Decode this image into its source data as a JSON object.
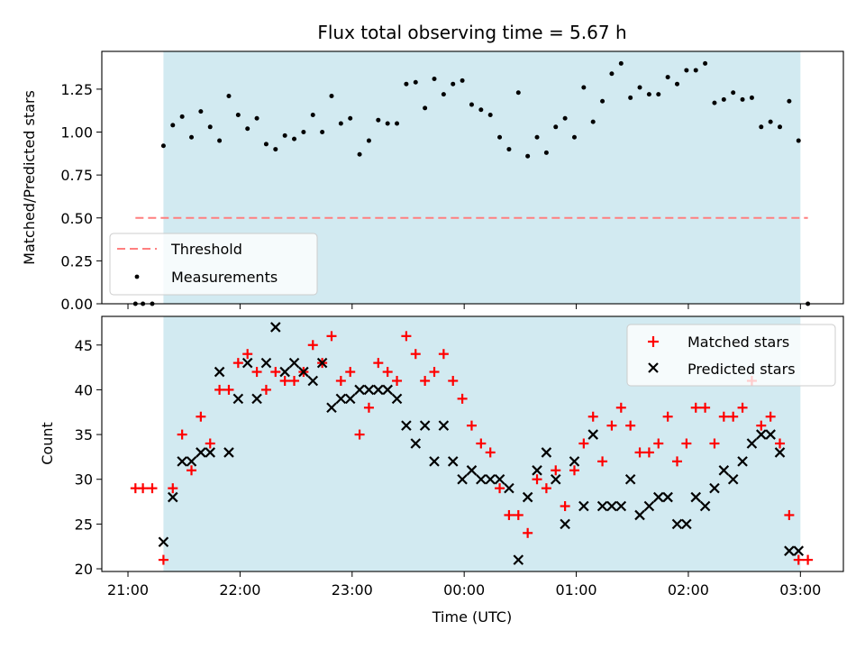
{
  "chart_data": [
    {
      "type": "scatter",
      "title": "Flux total observing time = 5.67 h",
      "xlabel": "",
      "ylabel": "Matched/Predicted stars",
      "xlim": [
        "20:46",
        "03:23"
      ],
      "ylim": [
        0,
        1.47
      ],
      "ytick_labels": [
        "0.00",
        "0.25",
        "0.50",
        "0.75",
        "1.00",
        "1.25"
      ],
      "yticks": [
        0,
        0.25,
        0.5,
        0.75,
        1.0,
        1.25
      ],
      "shaded_span": [
        "21:19",
        "03:00"
      ],
      "shade_color": "#add8e6",
      "threshold": {
        "name": "Threshold",
        "y": 0.5,
        "x_range": [
          "21:04",
          "03:04"
        ],
        "color": "#ff7f7f"
      },
      "legend": {
        "placement": "bottom-left",
        "entries": [
          "Threshold",
          "Measurements"
        ]
      },
      "series": [
        {
          "name": "Measurements",
          "marker": "dot",
          "color": "#000000",
          "points": [
            [
              "21:04",
              0.0
            ],
            [
              "21:08",
              0.0
            ],
            [
              "21:13",
              0.0
            ],
            [
              "21:19",
              0.92
            ],
            [
              "21:24",
              1.04
            ],
            [
              "21:29",
              1.09
            ],
            [
              "21:34",
              0.97
            ],
            [
              "21:39",
              1.12
            ],
            [
              "21:44",
              1.03
            ],
            [
              "21:49",
              0.95
            ],
            [
              "21:54",
              1.21
            ],
            [
              "21:59",
              1.1
            ],
            [
              "22:04",
              1.02
            ],
            [
              "22:09",
              1.08
            ],
            [
              "22:14",
              0.93
            ],
            [
              "22:19",
              0.9
            ],
            [
              "22:24",
              0.98
            ],
            [
              "22:29",
              0.96
            ],
            [
              "22:34",
              1.0
            ],
            [
              "22:39",
              1.1
            ],
            [
              "22:44",
              1.0
            ],
            [
              "22:49",
              1.21
            ],
            [
              "22:54",
              1.05
            ],
            [
              "22:59",
              1.08
            ],
            [
              "23:04",
              0.87
            ],
            [
              "23:09",
              0.95
            ],
            [
              "23:14",
              1.07
            ],
            [
              "23:19",
              1.05
            ],
            [
              "23:24",
              1.05
            ],
            [
              "23:29",
              1.28
            ],
            [
              "23:34",
              1.29
            ],
            [
              "23:39",
              1.14
            ],
            [
              "23:44",
              1.31
            ],
            [
              "23:49",
              1.22
            ],
            [
              "23:54",
              1.28
            ],
            [
              "23:59",
              1.3
            ],
            [
              "00:04",
              1.16
            ],
            [
              "00:09",
              1.13
            ],
            [
              "00:14",
              1.1
            ],
            [
              "00:19",
              0.97
            ],
            [
              "00:24",
              0.9
            ],
            [
              "00:29",
              1.23
            ],
            [
              "00:34",
              0.86
            ],
            [
              "00:39",
              0.97
            ],
            [
              "00:44",
              0.88
            ],
            [
              "00:49",
              1.03
            ],
            [
              "00:54",
              1.08
            ],
            [
              "00:59",
              0.97
            ],
            [
              "01:04",
              1.26
            ],
            [
              "01:09",
              1.06
            ],
            [
              "01:14",
              1.18
            ],
            [
              "01:19",
              1.34
            ],
            [
              "01:24",
              1.4
            ],
            [
              "01:29",
              1.2
            ],
            [
              "01:34",
              1.26
            ],
            [
              "01:39",
              1.22
            ],
            [
              "01:44",
              1.22
            ],
            [
              "01:49",
              1.32
            ],
            [
              "01:54",
              1.28
            ],
            [
              "01:59",
              1.36
            ],
            [
              "02:04",
              1.36
            ],
            [
              "02:09",
              1.4
            ],
            [
              "02:14",
              1.17
            ],
            [
              "02:19",
              1.19
            ],
            [
              "02:24",
              1.23
            ],
            [
              "02:29",
              1.19
            ],
            [
              "02:34",
              1.2
            ],
            [
              "02:39",
              1.03
            ],
            [
              "02:44",
              1.06
            ],
            [
              "02:49",
              1.03
            ],
            [
              "02:54",
              1.18
            ],
            [
              "02:59",
              0.95
            ],
            [
              "03:04",
              0.0
            ]
          ]
        }
      ]
    },
    {
      "type": "scatter",
      "title": "",
      "xlabel": "Time (UTC)",
      "ylabel": "Count",
      "xlim": [
        "20:46",
        "03:23"
      ],
      "ylim": [
        19.7,
        48.2
      ],
      "yticks": [
        20,
        25,
        30,
        35,
        40,
        45
      ],
      "ytick_labels": [
        "20",
        "25",
        "30",
        "35",
        "40",
        "45"
      ],
      "xticks": [
        "21:00",
        "22:00",
        "23:00",
        "00:00",
        "01:00",
        "02:00",
        "03:00"
      ],
      "shaded_span": [
        "21:19",
        "03:00"
      ],
      "shade_color": "#add8e6",
      "legend": {
        "placement": "top-right",
        "entries": [
          "Matched stars",
          "Predicted stars"
        ]
      },
      "series": [
        {
          "name": "Matched stars",
          "marker": "plus",
          "color": "#ff0000",
          "points": [
            [
              "21:04",
              29
            ],
            [
              "21:08",
              29
            ],
            [
              "21:13",
              29
            ],
            [
              "21:19",
              21
            ],
            [
              "21:24",
              29
            ],
            [
              "21:29",
              35
            ],
            [
              "21:34",
              31
            ],
            [
              "21:39",
              37
            ],
            [
              "21:44",
              34
            ],
            [
              "21:49",
              40
            ],
            [
              "21:54",
              40
            ],
            [
              "21:59",
              43
            ],
            [
              "22:04",
              44
            ],
            [
              "22:09",
              42
            ],
            [
              "22:14",
              40
            ],
            [
              "22:19",
              42
            ],
            [
              "22:24",
              41
            ],
            [
              "22:29",
              41
            ],
            [
              "22:34",
              42
            ],
            [
              "22:39",
              45
            ],
            [
              "22:44",
              43
            ],
            [
              "22:49",
              46
            ],
            [
              "22:54",
              41
            ],
            [
              "22:59",
              42
            ],
            [
              "23:04",
              35
            ],
            [
              "23:09",
              38
            ],
            [
              "23:14",
              43
            ],
            [
              "23:19",
              42
            ],
            [
              "23:24",
              41
            ],
            [
              "23:29",
              46
            ],
            [
              "23:34",
              44
            ],
            [
              "23:39",
              41
            ],
            [
              "23:44",
              42
            ],
            [
              "23:49",
              44
            ],
            [
              "23:54",
              41
            ],
            [
              "23:59",
              39
            ],
            [
              "00:04",
              36
            ],
            [
              "00:09",
              34
            ],
            [
              "00:14",
              33
            ],
            [
              "00:19",
              29
            ],
            [
              "00:24",
              26
            ],
            [
              "00:29",
              26
            ],
            [
              "00:34",
              24
            ],
            [
              "00:39",
              30
            ],
            [
              "00:44",
              29
            ],
            [
              "00:49",
              31
            ],
            [
              "00:54",
              27
            ],
            [
              "00:59",
              31
            ],
            [
              "01:04",
              34
            ],
            [
              "01:09",
              37
            ],
            [
              "01:14",
              32
            ],
            [
              "01:19",
              36
            ],
            [
              "01:24",
              38
            ],
            [
              "01:29",
              36
            ],
            [
              "01:34",
              33
            ],
            [
              "01:39",
              33
            ],
            [
              "01:44",
              34
            ],
            [
              "01:49",
              37
            ],
            [
              "01:54",
              32
            ],
            [
              "01:59",
              34
            ],
            [
              "02:04",
              38
            ],
            [
              "02:09",
              38
            ],
            [
              "02:14",
              34
            ],
            [
              "02:19",
              37
            ],
            [
              "02:24",
              37
            ],
            [
              "02:29",
              38
            ],
            [
              "02:34",
              41
            ],
            [
              "02:39",
              36
            ],
            [
              "02:44",
              37
            ],
            [
              "02:49",
              34
            ],
            [
              "02:54",
              26
            ],
            [
              "02:59",
              21
            ],
            [
              "03:04",
              21
            ]
          ]
        },
        {
          "name": "Predicted stars",
          "marker": "x",
          "color": "#000000",
          "points": [
            [
              "21:19",
              23
            ],
            [
              "21:24",
              28
            ],
            [
              "21:29",
              32
            ],
            [
              "21:34",
              32
            ],
            [
              "21:39",
              33
            ],
            [
              "21:44",
              33
            ],
            [
              "21:49",
              42
            ],
            [
              "21:54",
              33
            ],
            [
              "21:59",
              39
            ],
            [
              "22:04",
              43
            ],
            [
              "22:09",
              39
            ],
            [
              "22:14",
              43
            ],
            [
              "22:19",
              47
            ],
            [
              "22:24",
              42
            ],
            [
              "22:29",
              43
            ],
            [
              "22:34",
              42
            ],
            [
              "22:39",
              41
            ],
            [
              "22:44",
              43
            ],
            [
              "22:49",
              38
            ],
            [
              "22:54",
              39
            ],
            [
              "22:59",
              39
            ],
            [
              "23:04",
              40
            ],
            [
              "23:09",
              40
            ],
            [
              "23:14",
              40
            ],
            [
              "23:19",
              40
            ],
            [
              "23:24",
              39
            ],
            [
              "23:29",
              36
            ],
            [
              "23:34",
              34
            ],
            [
              "23:39",
              36
            ],
            [
              "23:44",
              32
            ],
            [
              "23:49",
              36
            ],
            [
              "23:54",
              32
            ],
            [
              "23:59",
              30
            ],
            [
              "00:04",
              31
            ],
            [
              "00:09",
              30
            ],
            [
              "00:14",
              30
            ],
            [
              "00:19",
              30
            ],
            [
              "00:24",
              29
            ],
            [
              "00:29",
              21
            ],
            [
              "00:34",
              28
            ],
            [
              "00:39",
              31
            ],
            [
              "00:44",
              33
            ],
            [
              "00:49",
              30
            ],
            [
              "00:54",
              25
            ],
            [
              "00:59",
              32
            ],
            [
              "01:04",
              27
            ],
            [
              "01:09",
              35
            ],
            [
              "01:14",
              27
            ],
            [
              "01:19",
              27
            ],
            [
              "01:24",
              27
            ],
            [
              "01:29",
              30
            ],
            [
              "01:34",
              26
            ],
            [
              "01:39",
              27
            ],
            [
              "01:44",
              28
            ],
            [
              "01:49",
              28
            ],
            [
              "01:54",
              25
            ],
            [
              "01:59",
              25
            ],
            [
              "02:04",
              28
            ],
            [
              "02:09",
              27
            ],
            [
              "02:14",
              29
            ],
            [
              "02:19",
              31
            ],
            [
              "02:24",
              30
            ],
            [
              "02:29",
              32
            ],
            [
              "02:34",
              34
            ],
            [
              "02:39",
              35
            ],
            [
              "02:44",
              35
            ],
            [
              "02:49",
              33
            ],
            [
              "02:54",
              22
            ],
            [
              "02:59",
              22
            ]
          ]
        }
      ]
    }
  ]
}
